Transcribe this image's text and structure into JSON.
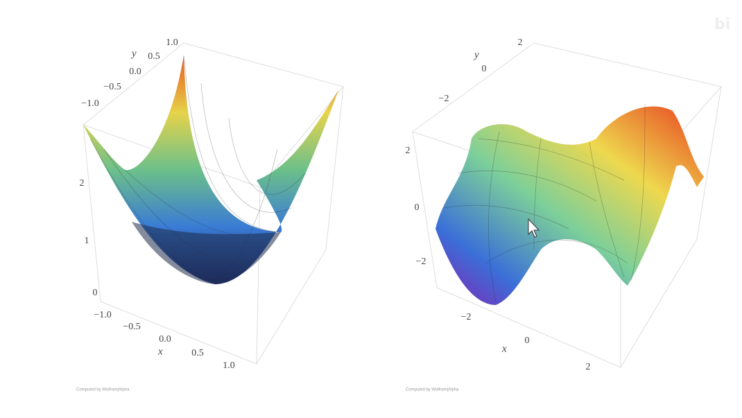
{
  "plots": [
    {
      "axis_labels": {
        "x": "x",
        "y": "y"
      },
      "x_ticks": [
        "−1.0",
        "−0.5",
        "0.0",
        "0.5",
        "1.0"
      ],
      "y_ticks": [
        "1.0",
        "0.5",
        "0.0",
        "−0.5",
        "−1.0"
      ],
      "z_ticks": [
        "2",
        "1",
        "0"
      ],
      "credit": "Computed by Wolfram|Alpha"
    },
    {
      "axis_labels": {
        "x": "x",
        "y": "y"
      },
      "x_ticks": [
        "−2",
        "0",
        "2"
      ],
      "y_ticks": [
        "2",
        "0",
        "−2"
      ],
      "z_ticks": [
        "2",
        "0",
        "−2"
      ],
      "credit": "Computed by Wolfram|Alpha"
    }
  ]
}
